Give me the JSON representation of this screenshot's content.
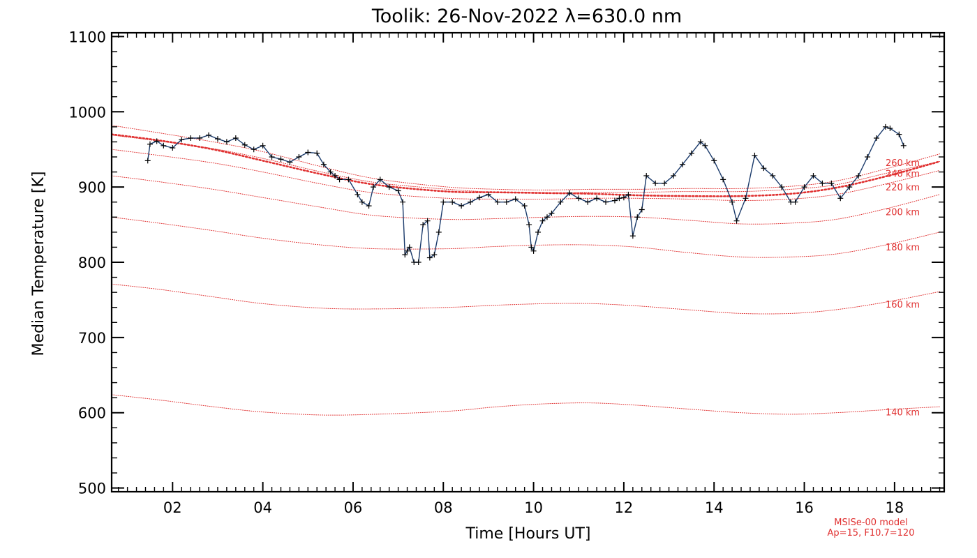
{
  "chart_data": {
    "type": "line",
    "title": "Toolik: 26-Nov-2022 λ=630.0 nm",
    "xlabel": "Time [Hours UT]",
    "ylabel": "Median Temperature [K]",
    "xlim": [
      0.65,
      19.1
    ],
    "ylim": [
      495,
      1105
    ],
    "x_ticks": [
      2,
      4,
      6,
      8,
      10,
      12,
      14,
      16,
      18
    ],
    "x_tick_labels": [
      "02",
      "04",
      "06",
      "08",
      "10",
      "12",
      "14",
      "16",
      "18"
    ],
    "y_ticks": [
      500,
      600,
      700,
      800,
      900,
      1000,
      1100
    ],
    "y_tick_labels": [
      "500",
      "600",
      "700",
      "800",
      "900",
      "1000",
      "1100"
    ],
    "grid": false,
    "series": [
      {
        "role": "measured",
        "color": "#1a3a6b",
        "marker": "plus",
        "x": [
          1.45,
          1.5,
          1.65,
          1.8,
          2.0,
          2.2,
          2.4,
          2.6,
          2.8,
          3.0,
          3.2,
          3.4,
          3.6,
          3.8,
          4.0,
          4.2,
          4.4,
          4.6,
          4.8,
          5.0,
          5.2,
          5.35,
          5.5,
          5.6,
          5.7,
          5.9,
          6.1,
          6.2,
          6.35,
          6.45,
          6.6,
          6.8,
          7.0,
          7.1,
          7.15,
          7.2,
          7.25,
          7.35,
          7.45,
          7.55,
          7.65,
          7.7,
          7.8,
          7.9,
          8.0,
          8.2,
          8.4,
          8.6,
          8.8,
          9.0,
          9.2,
          9.4,
          9.6,
          9.8,
          9.9,
          9.95,
          10.0,
          10.1,
          10.2,
          10.3,
          10.4,
          10.6,
          10.8,
          11.0,
          11.2,
          11.4,
          11.6,
          11.8,
          11.9,
          12.0,
          12.1,
          12.2,
          12.3,
          12.4,
          12.5,
          12.7,
          12.9,
          13.1,
          13.3,
          13.5,
          13.7,
          13.8,
          14.0,
          14.2,
          14.4,
          14.5,
          14.7,
          14.9,
          15.1,
          15.3,
          15.5,
          15.7,
          15.8,
          16.0,
          16.2,
          16.4,
          16.6,
          16.8,
          17.0,
          17.2,
          17.4,
          17.6,
          17.8,
          17.9,
          18.1,
          18.2
        ],
        "y": [
          935,
          957,
          961,
          955,
          952,
          963,
          965,
          965,
          969,
          964,
          960,
          965,
          956,
          950,
          955,
          940,
          937,
          933,
          940,
          946,
          945,
          930,
          920,
          915,
          910,
          910,
          890,
          880,
          875,
          900,
          910,
          900,
          895,
          880,
          810,
          815,
          820,
          800,
          800,
          850,
          855,
          806,
          810,
          840,
          880,
          880,
          875,
          880,
          886,
          890,
          880,
          880,
          884,
          875,
          850,
          820,
          815,
          840,
          855,
          860,
          865,
          880,
          892,
          885,
          880,
          885,
          880,
          882,
          885,
          886,
          890,
          835,
          860,
          870,
          915,
          905,
          905,
          915,
          930,
          945,
          960,
          955,
          935,
          910,
          880,
          855,
          885,
          942,
          925,
          915,
          900,
          880,
          880,
          900,
          915,
          905,
          905,
          885,
          900,
          915,
          940,
          965,
          980,
          978,
          970,
          955
        ]
      },
      {
        "name": "260 km",
        "style": "dotted",
        "color": "#e03030",
        "x": [
          0.65,
          1.7,
          2.9,
          4.0,
          5.3,
          6.5,
          8.1,
          9.2,
          10.3,
          11.3,
          12.3,
          13.4,
          14.6,
          15.7,
          16.7,
          17.8,
          19.0
        ],
        "y": [
          982,
          972,
          960,
          947,
          927,
          911,
          900,
          897,
          896,
          897,
          897,
          898,
          898,
          901,
          908,
          924,
          944
        ]
      },
      {
        "name": "240 km",
        "style": "dotted",
        "color": "#e03030",
        "x": [
          0.65,
          1.7,
          2.9,
          4.0,
          5.3,
          6.5,
          8.1,
          9.2,
          10.3,
          11.3,
          12.3,
          13.4,
          14.6,
          15.7,
          16.7,
          17.8,
          19.0
        ],
        "y": [
          969,
          961,
          951,
          938,
          920,
          906,
          897,
          893,
          892,
          893,
          893,
          894,
          894,
          897,
          903,
          918,
          934
        ]
      },
      {
        "name": "220 km",
        "style": "dotted",
        "color": "#e03030",
        "x": [
          0.65,
          1.7,
          2.9,
          4.0,
          5.3,
          6.5,
          8.1,
          9.2,
          10.3,
          11.3,
          12.3,
          13.4,
          14.6,
          15.7,
          16.7,
          17.8,
          19.0
        ],
        "y": [
          950,
          942,
          932,
          920,
          904,
          892,
          885,
          884,
          884,
          885,
          885,
          884,
          882,
          884,
          890,
          904,
          922
        ]
      },
      {
        "name": "200 km",
        "style": "dotted",
        "color": "#e03030",
        "x": [
          0.65,
          1.7,
          2.9,
          4.0,
          5.3,
          6.5,
          8.1,
          9.2,
          10.3,
          11.3,
          12.3,
          13.4,
          14.6,
          15.7,
          16.7,
          17.8,
          19.0
        ],
        "y": [
          915,
          907,
          897,
          886,
          873,
          862,
          857,
          858,
          860,
          861,
          860,
          856,
          851,
          852,
          857,
          871,
          890
        ]
      },
      {
        "name": "180 km",
        "style": "dotted",
        "color": "#e03030",
        "x": [
          0.65,
          1.7,
          2.9,
          4.0,
          5.3,
          6.5,
          8.1,
          9.2,
          10.3,
          11.3,
          12.3,
          13.4,
          14.6,
          15.7,
          16.7,
          17.8,
          19.0
        ],
        "y": [
          860,
          852,
          842,
          832,
          823,
          818,
          818,
          821,
          823,
          823,
          820,
          813,
          807,
          807,
          811,
          823,
          840
        ]
      },
      {
        "name": "160 km",
        "style": "dotted",
        "color": "#e03030",
        "x": [
          0.65,
          1.7,
          2.9,
          4.0,
          5.3,
          6.5,
          8.1,
          9.2,
          10.3,
          11.3,
          12.3,
          13.4,
          14.6,
          15.7,
          16.7,
          17.8,
          19.0
        ],
        "y": [
          771,
          764,
          754,
          745,
          739,
          738,
          740,
          743,
          745,
          745,
          742,
          737,
          732,
          732,
          737,
          747,
          761
        ]
      },
      {
        "name": "140 km",
        "style": "dotted",
        "color": "#e03030",
        "x": [
          0.65,
          1.7,
          2.9,
          4.0,
          5.3,
          6.5,
          8.1,
          9.2,
          10.3,
          11.3,
          12.3,
          13.4,
          14.6,
          15.7,
          16.7,
          17.8,
          19.0
        ],
        "y": [
          624,
          617,
          608,
          601,
          597,
          598,
          602,
          608,
          612,
          613,
          610,
          605,
          600,
          598,
          600,
          604,
          608
        ]
      },
      {
        "role": "fit",
        "style": "thick-dotted",
        "color": "#e03030",
        "x": [
          0.65,
          1.7,
          2.9,
          4.0,
          5.3,
          6.5,
          8.1,
          9.2,
          10.3,
          11.3,
          12.3,
          13.4,
          14.6,
          15.7,
          16.7,
          17.8,
          19.0
        ],
        "y": [
          970,
          962,
          950,
          935,
          917,
          903,
          894,
          893,
          892,
          891,
          889,
          888,
          888,
          891,
          899,
          914,
          934
        ]
      }
    ],
    "level_labels": [
      "260 km",
      "240 km",
      "220 km",
      "200 km",
      "180 km",
      "160 km",
      "140 km"
    ],
    "annotation_lines": [
      "MSISe-00 model",
      "Ap=15, F10.7=120"
    ]
  }
}
